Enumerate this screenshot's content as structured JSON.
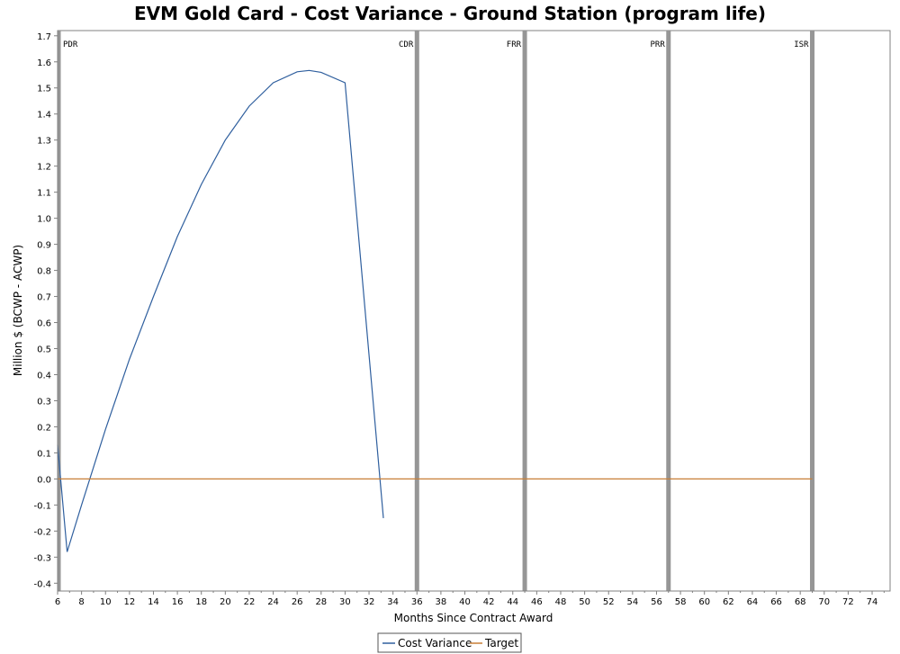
{
  "chart_data": {
    "type": "line",
    "title": "EVM Gold Card - Cost Variance - Ground Station (program life)",
    "xlabel": "Months Since Contract Award",
    "ylabel": "Million $ (BCWP - ACWP)",
    "xlim": [
      6,
      75.5
    ],
    "ylim": [
      -0.43,
      1.72
    ],
    "x_ticks": [
      6,
      8,
      10,
      12,
      14,
      16,
      18,
      20,
      22,
      24,
      26,
      28,
      30,
      32,
      34,
      36,
      38,
      40,
      42,
      44,
      46,
      48,
      50,
      52,
      54,
      56,
      58,
      60,
      62,
      64,
      66,
      68,
      70,
      72,
      74
    ],
    "y_ticks": [
      "-0.4",
      "-0.3",
      "-0.2",
      "-0.1",
      "0.0",
      "0.1",
      "0.2",
      "0.3",
      "0.4",
      "0.5",
      "0.6",
      "0.7",
      "0.8",
      "0.9",
      "1.0",
      "1.1",
      "1.2",
      "1.3",
      "1.4",
      "1.5",
      "1.6",
      "1.7"
    ],
    "grid": false,
    "legend_position": "bottom-center",
    "series": [
      {
        "name": "Cost Variance",
        "color": "#2f5f9e",
        "x": [
          6,
          6.8,
          8,
          10,
          12,
          14,
          16,
          18,
          20,
          22,
          24,
          26,
          27,
          28,
          30,
          33.2
        ],
        "y": [
          0.13,
          -0.28,
          -0.1,
          0.19,
          0.46,
          0.7,
          0.93,
          1.13,
          1.3,
          1.43,
          1.52,
          1.562,
          1.567,
          1.56,
          1.52,
          -0.15
        ]
      },
      {
        "name": "Target",
        "color": "#c87f37",
        "x": [
          6,
          69
        ],
        "y": [
          0,
          0
        ]
      }
    ],
    "milestones": [
      {
        "label": "PDR",
        "x": 6.15
      },
      {
        "label": "CDR",
        "x": 36
      },
      {
        "label": "FRR",
        "x": 45
      },
      {
        "label": "PRR",
        "x": 57
      },
      {
        "label": "ISR",
        "x": 69
      }
    ],
    "milestone_color": "#969696"
  }
}
